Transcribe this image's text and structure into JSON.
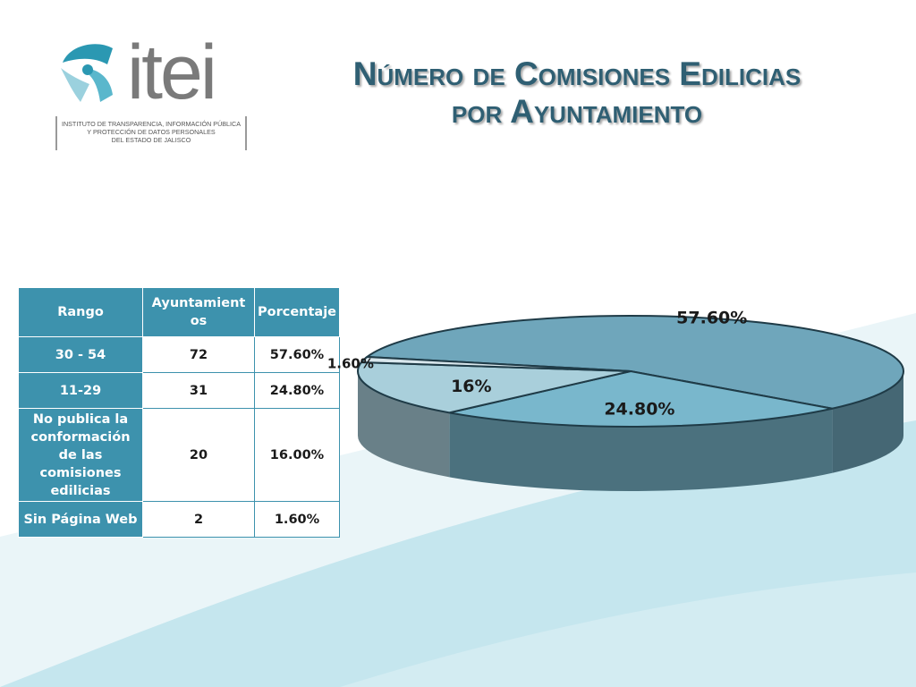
{
  "header": {
    "logo_text": "itei",
    "logo_subtitle": [
      "INSTITUTO DE TRANSPARENCIA, INFORMACIÓN PÚBLICA",
      "Y PROTECCIÓN DE DATOS PERSONALES",
      "DEL ESTADO DE JALISCO"
    ],
    "title_line1": "Número de Comisiones Edilicias",
    "title_line2": "por Ayuntamiento"
  },
  "colors": {
    "table_header": "#3d92ad",
    "title": "#2f5f73",
    "slice_1": "#6fa6bb",
    "slice_2": "#79b7cc",
    "slice_3": "#a9cfdb",
    "slice_4": "#d8e6ec"
  },
  "chart_data": {
    "type": "pie",
    "categories": [
      "30 - 54",
      "11-29",
      "No publica la conformación de las comisiones edilicias",
      "Sin Página Web"
    ],
    "values": [
      57.6,
      24.8,
      16.0,
      1.6
    ],
    "data_labels": [
      "57.60%",
      "24.80%",
      "16%",
      "1.60%"
    ],
    "table": {
      "headers": [
        "Rango",
        "Ayuntamientos",
        "Porcentaje"
      ],
      "rows": [
        [
          "30 - 54",
          "72",
          "57.60%"
        ],
        [
          "11-29",
          "31",
          "24.80%"
        ],
        [
          "No publica la conformación de las comisiones edilicias",
          "20",
          "16.00%"
        ],
        [
          "Sin Página Web",
          "2",
          "1.60%"
        ]
      ]
    }
  }
}
